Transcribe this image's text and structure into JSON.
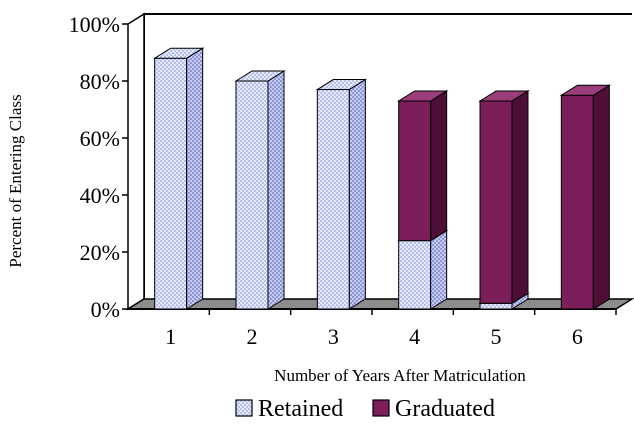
{
  "chart_data": {
    "type": "bar",
    "stacked": true,
    "three_d": true,
    "categories": [
      "1",
      "2",
      "3",
      "4",
      "5",
      "6"
    ],
    "series": [
      {
        "name": "Retained",
        "values": [
          88,
          80,
          77,
          24,
          2,
          0
        ],
        "color": "#d6dcf7",
        "pattern": "checker"
      },
      {
        "name": "Graduated",
        "values": [
          0,
          0,
          0,
          49,
          71,
          75
        ],
        "color": "#7b1e5a"
      }
    ],
    "xlabel": "Number of Years After Matriculation",
    "ylabel": "Percent of Entering Class",
    "ylim": [
      0,
      100
    ],
    "yticks": [
      "0%",
      "20%",
      "40%",
      "60%",
      "80%",
      "100%"
    ],
    "legend_position": "bottom",
    "grid": false
  }
}
